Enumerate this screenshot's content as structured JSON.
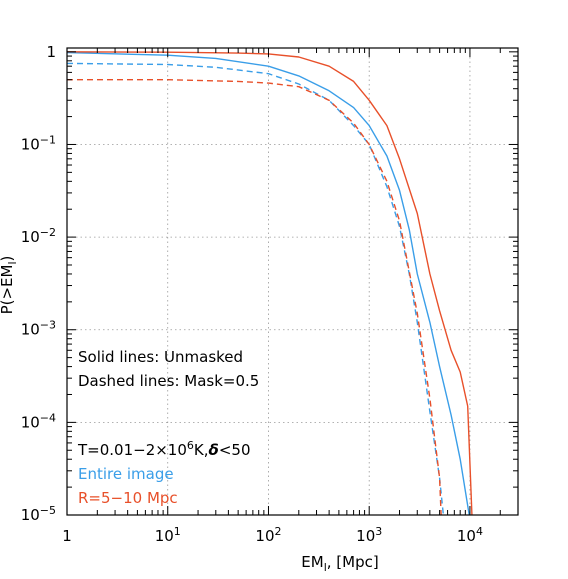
{
  "chart_data": {
    "type": "line",
    "xlabel": "EM",
    "xlabel_sub": "l",
    "xlabel_suffix": ", [Mpc]",
    "ylabel": "P(>EM",
    "ylabel_sub": "l",
    "ylabel_suffix": ")",
    "xscale": "log",
    "yscale": "log",
    "xlim": [
      1,
      30000
    ],
    "ylim": [
      1e-05,
      1.1
    ],
    "grid": true,
    "x_ticks": [
      {
        "value": 1,
        "base": "1",
        "exp": ""
      },
      {
        "value": 10,
        "base": "10",
        "exp": "1"
      },
      {
        "value": 100,
        "base": "10",
        "exp": "2"
      },
      {
        "value": 1000,
        "base": "10",
        "exp": "3"
      },
      {
        "value": 10000,
        "base": "10",
        "exp": "4"
      }
    ],
    "y_ticks": [
      {
        "value": 1,
        "base": "1",
        "exp": ""
      },
      {
        "value": 0.1,
        "base": "10",
        "exp": "−1"
      },
      {
        "value": 0.01,
        "base": "10",
        "exp": "−2"
      },
      {
        "value": 0.001,
        "base": "10",
        "exp": "−3"
      },
      {
        "value": 0.0001,
        "base": "10",
        "exp": "−4"
      },
      {
        "value": 1e-05,
        "base": "10",
        "exp": "−5"
      }
    ],
    "annotations": {
      "line1": "Solid lines: Unmasked",
      "line2": "Dashed lines: Mask=0.5",
      "cond_prefix": "T=0.01−2×10",
      "cond_exp": "6",
      "cond_suffix": "K,",
      "cond_delta": "δ",
      "cond_tail": "<50",
      "entire": "Entire image",
      "r_range": "R=5−10 Mpc"
    },
    "colors": {
      "entire": "#3a9ee8",
      "r_range": "#e8502a",
      "axis": "#000000",
      "grid": "#999999"
    },
    "series": [
      {
        "name": "Entire image",
        "style": "solid",
        "color": "#3a9ee8",
        "x": [
          1,
          10,
          30,
          100,
          200,
          400,
          700,
          1000,
          1500,
          2000,
          2500,
          3000,
          4000,
          5000,
          6500,
          8000,
          10000
        ],
        "y": [
          0.98,
          0.92,
          0.85,
          0.7,
          0.55,
          0.38,
          0.25,
          0.16,
          0.075,
          0.032,
          0.012,
          0.004,
          0.0012,
          0.0004,
          0.00012,
          4e-05,
          9e-06
        ]
      },
      {
        "name": "R=5−10 Mpc",
        "style": "solid",
        "color": "#e8502a",
        "x": [
          1,
          10,
          50,
          100,
          200,
          400,
          700,
          1000,
          1500,
          2000,
          3000,
          4000,
          5000,
          6500,
          8000,
          9500,
          10500
        ],
        "y": [
          1.0,
          0.99,
          0.97,
          0.95,
          0.88,
          0.7,
          0.48,
          0.3,
          0.16,
          0.07,
          0.018,
          0.004,
          0.0016,
          0.0006,
          0.00035,
          0.00015,
          9e-06
        ]
      },
      {
        "name": "Entire image",
        "style": "dashed",
        "color": "#3a9ee8",
        "x": [
          1,
          10,
          30,
          100,
          200,
          400,
          700,
          1000,
          1500,
          2000,
          2500,
          3000,
          4000,
          5000,
          5500
        ],
        "y": [
          0.75,
          0.73,
          0.68,
          0.58,
          0.45,
          0.3,
          0.16,
          0.1,
          0.035,
          0.013,
          0.004,
          0.0012,
          0.00013,
          2.5e-05,
          9e-06
        ]
      },
      {
        "name": "R=5−10 Mpc",
        "style": "dashed",
        "color": "#e8502a",
        "x": [
          1,
          10,
          50,
          100,
          200,
          400,
          700,
          1000,
          1500,
          2000,
          3000,
          4000,
          5000,
          5200
        ],
        "y": [
          0.5,
          0.5,
          0.48,
          0.46,
          0.42,
          0.3,
          0.17,
          0.1,
          0.04,
          0.015,
          0.0015,
          0.00018,
          2.5e-05,
          9e-06
        ]
      }
    ]
  }
}
